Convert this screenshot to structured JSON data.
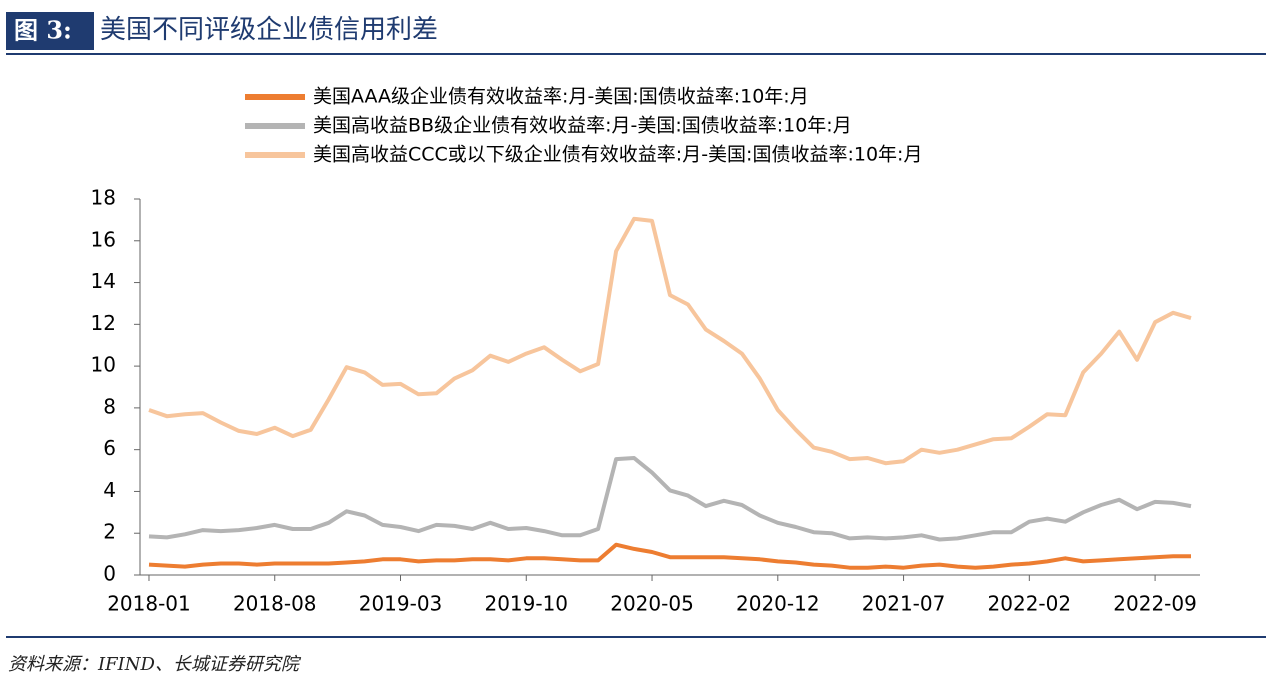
{
  "chart_data": {
    "type": "line",
    "figure_label": "图 3:",
    "title": "美国不同评级企业债信用利差",
    "source": "资料来源：IFIND、长城证券研究院",
    "categories": [
      "2018-01",
      null,
      null,
      null,
      null,
      null,
      null,
      "2018-08",
      null,
      null,
      null,
      null,
      null,
      null,
      "2019-03",
      null,
      null,
      null,
      null,
      null,
      null,
      "2019-10",
      null,
      null,
      null,
      null,
      null,
      null,
      "2020-05",
      null,
      null,
      null,
      null,
      null,
      null,
      "2020-12",
      null,
      null,
      null,
      null,
      null,
      null,
      "2021-07",
      null,
      null,
      null,
      null,
      null,
      null,
      "2022-02",
      null,
      null,
      null,
      null,
      null,
      null,
      "2022-09",
      null,
      null
    ],
    "series": [
      {
        "name": "美国AAA级企业债有效收益率:月-美国:国债收益率:10年:月",
        "color": "#ed7d31",
        "values": [
          0.5,
          0.45,
          0.4,
          0.5,
          0.55,
          0.55,
          0.5,
          0.55,
          0.55,
          0.55,
          0.55,
          0.6,
          0.65,
          0.75,
          0.75,
          0.65,
          0.7,
          0.7,
          0.75,
          0.75,
          0.7,
          0.8,
          0.8,
          0.75,
          0.7,
          0.7,
          1.45,
          1.25,
          1.1,
          0.85,
          0.85,
          0.85,
          0.85,
          0.8,
          0.75,
          0.65,
          0.6,
          0.5,
          0.45,
          0.35,
          0.35,
          0.4,
          0.35,
          0.45,
          0.5,
          0.4,
          0.35,
          0.4,
          0.5,
          0.55,
          0.65,
          0.8,
          0.65,
          0.7,
          0.75,
          0.8,
          0.85,
          0.9,
          0.9
        ]
      },
      {
        "name": "美国高收益BB级企业债有效收益率:月-美国:国债收益率:10年:月",
        "color": "#b4b4b4",
        "values": [
          1.85,
          1.8,
          1.95,
          2.15,
          2.1,
          2.15,
          2.25,
          2.4,
          2.2,
          2.2,
          2.5,
          3.05,
          2.85,
          2.4,
          2.3,
          2.1,
          2.4,
          2.35,
          2.2,
          2.5,
          2.2,
          2.25,
          2.1,
          1.9,
          1.9,
          2.2,
          5.55,
          5.6,
          4.9,
          4.05,
          3.8,
          3.3,
          3.55,
          3.35,
          2.85,
          2.5,
          2.3,
          2.05,
          2.0,
          1.75,
          1.8,
          1.75,
          1.8,
          1.9,
          1.7,
          1.75,
          1.9,
          2.05,
          2.05,
          2.55,
          2.7,
          2.55,
          3.0,
          3.35,
          3.6,
          3.15,
          3.5,
          3.45,
          3.3
        ]
      },
      {
        "name": "美国高收益CCC或以下级企业债有效收益率:月-美国:国债收益率:10年:月",
        "color": "#f7c59c",
        "values": [
          7.9,
          7.6,
          7.7,
          7.75,
          7.3,
          6.9,
          6.75,
          7.05,
          6.65,
          6.95,
          8.4,
          9.95,
          9.7,
          9.1,
          9.15,
          8.65,
          8.7,
          9.4,
          9.8,
          10.5,
          10.2,
          10.6,
          10.9,
          10.3,
          9.75,
          10.1,
          15.5,
          17.05,
          16.95,
          13.4,
          12.95,
          11.75,
          11.2,
          10.6,
          9.4,
          7.9,
          6.95,
          6.1,
          5.9,
          5.55,
          5.6,
          5.35,
          5.45,
          6.0,
          5.85,
          6.0,
          6.25,
          6.5,
          6.55,
          7.1,
          7.7,
          7.65,
          9.7,
          10.6,
          11.65,
          10.3,
          12.1,
          12.55,
          12.3
        ]
      }
    ],
    "ylim": [
      0,
      18
    ],
    "yticks": [
      0,
      2,
      4,
      6,
      8,
      10,
      12,
      14,
      16,
      18
    ],
    "grid": false
  }
}
